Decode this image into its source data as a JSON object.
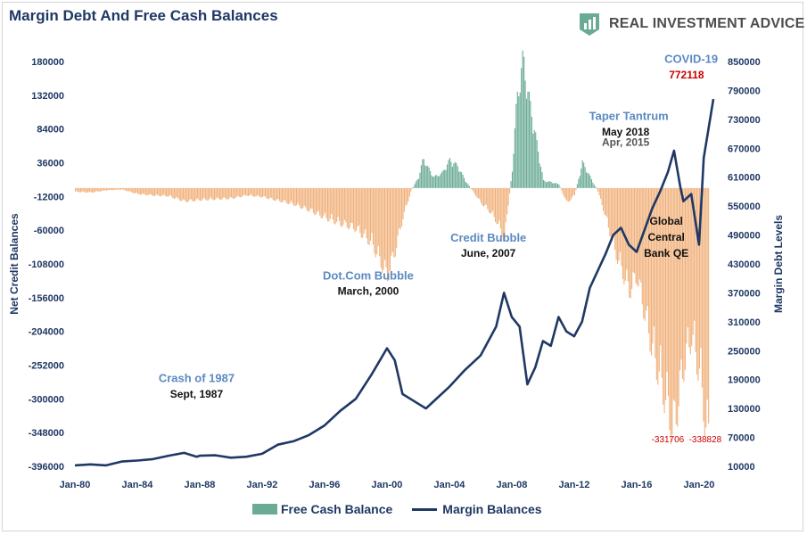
{
  "brand": {
    "name": "REAL INVESTMENT ADVICE",
    "icon": "chart-badge-icon",
    "color": "#6aab95"
  },
  "legend": {
    "bar_label": "Free Cash Balance",
    "line_label": "Margin Balances"
  },
  "colors": {
    "title": "#1f3864",
    "positive_bar": "#6aab95",
    "negative_bar": "#f0b07a",
    "line": "#1f3864",
    "annotation_blue": "#5b8ac3",
    "annotation_dark": "#333333",
    "annotation_red": "#cc0000"
  },
  "chart_data": {
    "type": "bar",
    "title": "Margin Debt And Free Cash Balances",
    "xlabel": "",
    "ylabel": "Net Credit Balances",
    "y2label": "Margin Debt Levels",
    "x_ticks": [
      "Jan-80",
      "Jan-84",
      "Jan-88",
      "Jan-92",
      "Jan-96",
      "Jan-00",
      "Jan-04",
      "Jan-08",
      "Jan-12",
      "Jan-16",
      "Jan-20"
    ],
    "xlim": [
      1980,
      2020.92
    ],
    "ylim": [
      -396000,
      180000
    ],
    "y_ticks": [
      180000,
      132000,
      84000,
      36000,
      -12000,
      -60000,
      -108000,
      -156000,
      -204000,
      -252000,
      -300000,
      -348000,
      -396000
    ],
    "y2lim": [
      10000,
      850000
    ],
    "y2_ticks": [
      850000,
      790000,
      730000,
      670000,
      610000,
      550000,
      490000,
      430000,
      370000,
      310000,
      250000,
      190000,
      130000,
      70000,
      10000
    ],
    "series": [
      {
        "name": "Free Cash Balance",
        "type": "bar",
        "axis": "left",
        "points": [
          [
            1980,
            -5000
          ],
          [
            1981,
            -6000
          ],
          [
            1982,
            -3000
          ],
          [
            1983,
            -2000
          ],
          [
            1984,
            -8000
          ],
          [
            1985,
            -10000
          ],
          [
            1986,
            -11000
          ],
          [
            1987,
            -18000
          ],
          [
            1988,
            -16000
          ],
          [
            1989,
            -15000
          ],
          [
            1990,
            -14000
          ],
          [
            1991,
            -10000
          ],
          [
            1992,
            -12000
          ],
          [
            1993,
            -17000
          ],
          [
            1994,
            -22000
          ],
          [
            1995,
            -30000
          ],
          [
            1996,
            -40000
          ],
          [
            1997,
            -48000
          ],
          [
            1998,
            -55000
          ],
          [
            1999,
            -75000
          ],
          [
            2000,
            -120000
          ],
          [
            2000.5,
            -85000
          ],
          [
            2001,
            -40000
          ],
          [
            2001.5,
            -5000
          ],
          [
            2002,
            15000
          ],
          [
            2002.3,
            40000
          ],
          [
            2002.8,
            20000
          ],
          [
            2003,
            15000
          ],
          [
            2003.5,
            20000
          ],
          [
            2004,
            38000
          ],
          [
            2004.5,
            30000
          ],
          [
            2005,
            10000
          ],
          [
            2005.5,
            -5000
          ],
          [
            2006,
            -20000
          ],
          [
            2006.5,
            -30000
          ],
          [
            2007,
            -45000
          ],
          [
            2007.5,
            -70000
          ],
          [
            2008,
            25000
          ],
          [
            2008.3,
            120000
          ],
          [
            2008.7,
            175000
          ],
          [
            2009,
            130000
          ],
          [
            2009.5,
            70000
          ],
          [
            2010,
            10000
          ],
          [
            2010.5,
            8000
          ],
          [
            2011,
            5000
          ],
          [
            2011.5,
            -20000
          ],
          [
            2012,
            -10000
          ],
          [
            2012.5,
            35000
          ],
          [
            2013,
            15000
          ],
          [
            2013.5,
            -5000
          ],
          [
            2014,
            -40000
          ],
          [
            2014.5,
            -80000
          ],
          [
            2015,
            -110000
          ],
          [
            2015.5,
            -140000
          ],
          [
            2016,
            -120000
          ],
          [
            2016.5,
            -170000
          ],
          [
            2017,
            -220000
          ],
          [
            2017.5,
            -260000
          ],
          [
            2018,
            -300000
          ],
          [
            2018.3,
            -331706
          ],
          [
            2018.7,
            -280000
          ],
          [
            2019,
            -240000
          ],
          [
            2019.5,
            -200000
          ],
          [
            2020,
            -250000
          ],
          [
            2020.5,
            -338828
          ]
        ]
      },
      {
        "name": "Margin Balances",
        "type": "line",
        "axis": "right",
        "points": [
          [
            1980,
            12000
          ],
          [
            1981,
            14000
          ],
          [
            1982,
            12000
          ],
          [
            1983,
            20000
          ],
          [
            1984,
            22000
          ],
          [
            1985,
            25000
          ],
          [
            1986,
            32000
          ],
          [
            1987,
            38000
          ],
          [
            1987.8,
            30000
          ],
          [
            1988,
            32000
          ],
          [
            1989,
            33000
          ],
          [
            1990,
            28000
          ],
          [
            1991,
            30000
          ],
          [
            1992,
            36000
          ],
          [
            1993,
            55000
          ],
          [
            1994,
            62000
          ],
          [
            1995,
            75000
          ],
          [
            1996,
            95000
          ],
          [
            1997,
            125000
          ],
          [
            1998,
            150000
          ],
          [
            1999,
            200000
          ],
          [
            2000,
            255000
          ],
          [
            2000.5,
            230000
          ],
          [
            2001,
            160000
          ],
          [
            2001.5,
            150000
          ],
          [
            2002,
            140000
          ],
          [
            2002.5,
            130000
          ],
          [
            2003,
            145000
          ],
          [
            2004,
            175000
          ],
          [
            2005,
            210000
          ],
          [
            2006,
            240000
          ],
          [
            2007,
            300000
          ],
          [
            2007.5,
            370000
          ],
          [
            2008,
            320000
          ],
          [
            2008.5,
            300000
          ],
          [
            2009,
            180000
          ],
          [
            2009.5,
            215000
          ],
          [
            2010,
            270000
          ],
          [
            2010.5,
            260000
          ],
          [
            2011,
            320000
          ],
          [
            2011.5,
            290000
          ],
          [
            2012,
            280000
          ],
          [
            2012.5,
            310000
          ],
          [
            2013,
            380000
          ],
          [
            2014,
            450000
          ],
          [
            2014.5,
            490000
          ],
          [
            2015,
            505000
          ],
          [
            2015.5,
            470000
          ],
          [
            2016,
            455000
          ],
          [
            2016.5,
            500000
          ],
          [
            2017,
            545000
          ],
          [
            2017.5,
            580000
          ],
          [
            2018,
            620000
          ],
          [
            2018.4,
            665000
          ],
          [
            2018.8,
            590000
          ],
          [
            2019,
            560000
          ],
          [
            2019.5,
            575000
          ],
          [
            2020,
            470000
          ],
          [
            2020.3,
            650000
          ],
          [
            2020.92,
            772118
          ]
        ]
      }
    ],
    "annotations": [
      {
        "text": "Crash of 1987",
        "style": "blue",
        "x": 1987.8,
        "y": -276000
      },
      {
        "text": "Sept, 1987",
        "style": "dark",
        "x": 1987.8,
        "y": -298000
      },
      {
        "text": "Dot.Com Bubble",
        "style": "blue",
        "x": 1998.8,
        "y": -130000
      },
      {
        "text": "March, 2000",
        "style": "dark",
        "x": 1998.8,
        "y": -152000
      },
      {
        "text": "Credit Bubble",
        "style": "blue",
        "x": 2006.5,
        "y": -76000
      },
      {
        "text": "June, 2007",
        "style": "dark",
        "x": 2006.5,
        "y": -98000
      },
      {
        "text": "Taper Tantrum",
        "style": "blue",
        "x": 2015.5,
        "y": 97000
      },
      {
        "text": "May 2018",
        "style": "dark",
        "x": 2015.3,
        "y": 75000
      },
      {
        "text": "Apr, 2015",
        "style": "darkgray",
        "x": 2015.3,
        "y": 60000
      },
      {
        "text": "Global",
        "style": "dark",
        "x": 2017.9,
        "y": -52000
      },
      {
        "text": "Central",
        "style": "dark",
        "x": 2017.9,
        "y": -75000
      },
      {
        "text": "Bank QE",
        "style": "dark",
        "x": 2017.9,
        "y": -98000
      },
      {
        "text": "COVID-19",
        "style": "blue",
        "x": 2019.5,
        "y": 178000
      },
      {
        "text": "772118",
        "style": "red_bold",
        "x": 2019.2,
        "y": 156000
      },
      {
        "text": "-331706",
        "style": "red",
        "x": 2018.0,
        "y": -362000
      },
      {
        "text": "-338828",
        "style": "red",
        "x": 2020.4,
        "y": -362000
      }
    ]
  }
}
